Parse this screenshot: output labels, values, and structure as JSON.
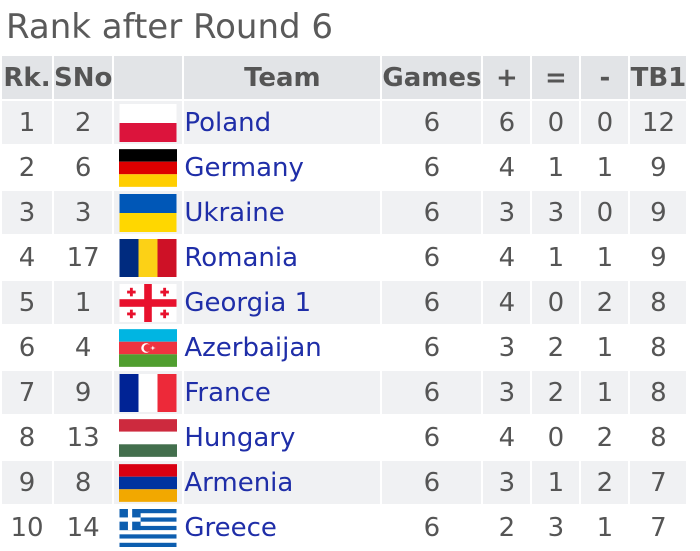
{
  "title": "Rank after Round 6",
  "headers": {
    "rank": "Rk.",
    "sno": "SNo",
    "team": "Team",
    "games": "Games",
    "plus": "+",
    "equal": "=",
    "minus": "-",
    "tb1": "TB1"
  },
  "rows": [
    {
      "rank": "1",
      "sno": "2",
      "team": "Poland",
      "flag": "poland-flag-icon",
      "games": "6",
      "plus": "6",
      "equal": "0",
      "minus": "0",
      "tb1": "12"
    },
    {
      "rank": "2",
      "sno": "6",
      "team": "Germany",
      "flag": "germany-flag-icon",
      "games": "6",
      "plus": "4",
      "equal": "1",
      "minus": "1",
      "tb1": "9"
    },
    {
      "rank": "3",
      "sno": "3",
      "team": "Ukraine",
      "flag": "ukraine-flag-icon",
      "games": "6",
      "plus": "3",
      "equal": "3",
      "minus": "0",
      "tb1": "9"
    },
    {
      "rank": "4",
      "sno": "17",
      "team": "Romania",
      "flag": "romania-flag-icon",
      "games": "6",
      "plus": "4",
      "equal": "1",
      "minus": "1",
      "tb1": "9"
    },
    {
      "rank": "5",
      "sno": "1",
      "team": "Georgia 1",
      "flag": "georgia-flag-icon",
      "games": "6",
      "plus": "4",
      "equal": "0",
      "minus": "2",
      "tb1": "8"
    },
    {
      "rank": "6",
      "sno": "4",
      "team": "Azerbaijan",
      "flag": "azerbaijan-flag-icon",
      "games": "6",
      "plus": "3",
      "equal": "2",
      "minus": "1",
      "tb1": "8"
    },
    {
      "rank": "7",
      "sno": "9",
      "team": "France",
      "flag": "france-flag-icon",
      "games": "6",
      "plus": "3",
      "equal": "2",
      "minus": "1",
      "tb1": "8"
    },
    {
      "rank": "8",
      "sno": "13",
      "team": "Hungary",
      "flag": "hungary-flag-icon",
      "games": "6",
      "plus": "4",
      "equal": "0",
      "minus": "2",
      "tb1": "8"
    },
    {
      "rank": "9",
      "sno": "8",
      "team": "Armenia",
      "flag": "armenia-flag-icon",
      "games": "6",
      "plus": "3",
      "equal": "1",
      "minus": "2",
      "tb1": "7"
    },
    {
      "rank": "10",
      "sno": "14",
      "team": "Greece",
      "flag": "greece-flag-icon",
      "games": "6",
      "plus": "2",
      "equal": "3",
      "minus": "1",
      "tb1": "7"
    }
  ],
  "colors": {
    "header_bg": "#e2e4e7",
    "odd_row_bg": "#f0f1f3",
    "team_link": "#1f2ea8"
  }
}
